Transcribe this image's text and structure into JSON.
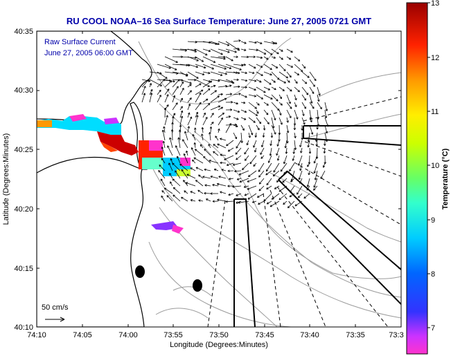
{
  "title": "RU COOL  NOAA–16  Sea Surface Temperature:  June 27, 2005 0721 GMT",
  "legend": {
    "line1": "Raw Surface Current",
    "line2": "June 27, 2005 06:00 GMT"
  },
  "scale": {
    "label": "50 cm/s"
  },
  "axes": {
    "xlabel": "Longitude (Degrees:Minutes)",
    "ylabel": "Latitude (Degrees:Minutes)",
    "xticks": [
      "74:10",
      "74:05",
      "74:00",
      "73:55",
      "73:50",
      "73:45",
      "73:40",
      "73:35",
      "73:3"
    ],
    "yticks": [
      "40:35",
      "40:30",
      "40:25",
      "40:20",
      "40:15",
      "40:10"
    ]
  },
  "colorbar": {
    "label": "Temperature (°C)",
    "ticks": [
      "13",
      "12",
      "11",
      "10",
      "9",
      "8",
      "7"
    ],
    "range": [
      6.5,
      13
    ]
  },
  "colors": {
    "title": "#0000aa",
    "legend_text": "#0000aa",
    "land": "#ffffff",
    "contour": "#999999"
  },
  "chart_data": {
    "type": "map",
    "title": "RU COOL  NOAA–16  Sea Surface Temperature:  June 27, 2005 0721 GMT",
    "variable": "Sea Surface Temperature",
    "units": "°C",
    "color_range": [
      6.5,
      13
    ],
    "xlim": [
      "74:10",
      "73:3"
    ],
    "ylim": [
      "40:10",
      "40:35"
    ]
  }
}
